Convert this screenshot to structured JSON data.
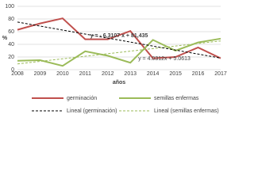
{
  "chart_data": {
    "type": "line",
    "y_label": "%",
    "x_label": "años",
    "categories": [
      "2008",
      "2009",
      "2010",
      "2011",
      "2012",
      "2013",
      "2014",
      "2015",
      "2016",
      "2017"
    ],
    "ylim": [
      0,
      100
    ],
    "yticks": [
      0,
      20,
      40,
      60,
      80,
      100
    ],
    "grid": true,
    "series": [
      {
        "name": "germinación",
        "color": "#c0504d",
        "dash": false,
        "values": [
          63,
          73,
          81,
          48,
          48,
          61,
          18,
          20,
          35,
          18
        ]
      },
      {
        "name": "semillas enfermas",
        "color": "#9bbb59",
        "dash": false,
        "values": [
          14,
          15,
          6,
          29,
          22,
          11,
          47,
          30,
          43,
          49
        ]
      },
      {
        "name": "Lineal (germinación)",
        "color": "#000000",
        "dash": true,
        "values": [
          75.12,
          68.81,
          62.5,
          56.19,
          49.88,
          43.57,
          37.26,
          30.95,
          24.64,
          18.33
        ]
      },
      {
        "name": "Lineal (semillas enfermas)",
        "color": "#9bbb59",
        "dash": true,
        "values": [
          9.09,
          13.12,
          17.15,
          21.19,
          25.22,
          29.25,
          33.28,
          37.31,
          41.34,
          45.37
        ]
      }
    ],
    "annotations": [
      "y = - 6,3107 x + 81,435",
      "y = 4.0312x + 5.0613"
    ]
  }
}
